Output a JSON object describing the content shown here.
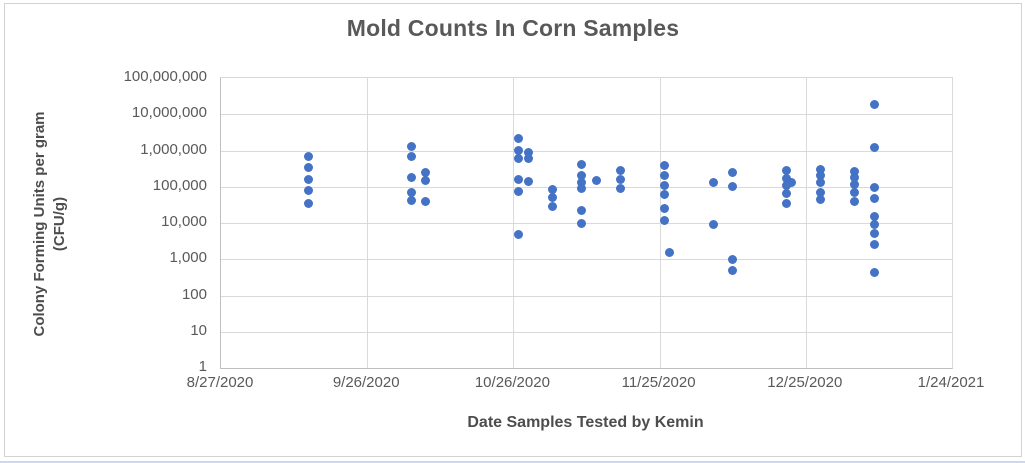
{
  "colors": {
    "marker": "#4472C4",
    "gridline": "#D9D9D9",
    "axis_line": "#BFBFBF",
    "text": "#595959",
    "bottom_strip": "#CDD9EA"
  },
  "chart_data": {
    "type": "scatter",
    "title": "Mold Counts In Corn Samples",
    "xlabel": "Date Samples Tested by Kemin",
    "ylabel_line1": "Colony Forming Units per gram",
    "ylabel_line2": "(CFU/g)",
    "y_scale": "log10",
    "ylim": [
      1,
      100000000
    ],
    "grid": "both",
    "legend": "none",
    "x_start": "8/27/2020",
    "x_end": "1/24/2021",
    "x_ticks": [
      "8/27/2020",
      "9/26/2020",
      "10/26/2020",
      "11/25/2020",
      "12/25/2020",
      "1/24/2021"
    ],
    "y_ticks": [
      {
        "label": "100,000,000",
        "value": 100000000
      },
      {
        "label": "10,000,000",
        "value": 10000000
      },
      {
        "label": "1,000,000",
        "value": 1000000
      },
      {
        "label": "100,000",
        "value": 100000
      },
      {
        "label": "10,000",
        "value": 10000
      },
      {
        "label": "1,000",
        "value": 1000
      },
      {
        "label": "100",
        "value": 100
      },
      {
        "label": "10",
        "value": 10
      },
      {
        "label": "1",
        "value": 1
      }
    ],
    "points": [
      {
        "date": "9/14/2020",
        "cfu": 700000
      },
      {
        "date": "9/14/2020",
        "cfu": 340000
      },
      {
        "date": "9/14/2020",
        "cfu": 160000
      },
      {
        "date": "9/14/2020",
        "cfu": 78000
      },
      {
        "date": "9/14/2020",
        "cfu": 34000
      },
      {
        "date": "10/5/2020",
        "cfu": 1300000
      },
      {
        "date": "10/5/2020",
        "cfu": 700000
      },
      {
        "date": "10/5/2020",
        "cfu": 180000
      },
      {
        "date": "10/5/2020",
        "cfu": 70000
      },
      {
        "date": "10/5/2020",
        "cfu": 42000
      },
      {
        "date": "10/8/2020",
        "cfu": 240000
      },
      {
        "date": "10/8/2020",
        "cfu": 145000
      },
      {
        "date": "10/8/2020",
        "cfu": 38000
      },
      {
        "date": "10/27/2020",
        "cfu": 2200000
      },
      {
        "date": "10/27/2020",
        "cfu": 1000000
      },
      {
        "date": "10/27/2020",
        "cfu": 620000
      },
      {
        "date": "10/29/2020",
        "cfu": 880000
      },
      {
        "date": "10/29/2020",
        "cfu": 600000
      },
      {
        "date": "10/27/2020",
        "cfu": 160000
      },
      {
        "date": "10/29/2020",
        "cfu": 140000
      },
      {
        "date": "10/27/2020",
        "cfu": 75000
      },
      {
        "date": "10/27/2020",
        "cfu": 4700
      },
      {
        "date": "11/3/2020",
        "cfu": 85000
      },
      {
        "date": "11/3/2020",
        "cfu": 50000
      },
      {
        "date": "11/3/2020",
        "cfu": 28000
      },
      {
        "date": "11/9/2020",
        "cfu": 400000
      },
      {
        "date": "11/9/2020",
        "cfu": 200000
      },
      {
        "date": "11/9/2020",
        "cfu": 130000
      },
      {
        "date": "11/9/2020",
        "cfu": 90000
      },
      {
        "date": "11/9/2020",
        "cfu": 22000
      },
      {
        "date": "11/9/2020",
        "cfu": 10000
      },
      {
        "date": "11/12/2020",
        "cfu": 150000
      },
      {
        "date": "11/17/2020",
        "cfu": 280000
      },
      {
        "date": "11/17/2020",
        "cfu": 160000
      },
      {
        "date": "11/17/2020",
        "cfu": 90000
      },
      {
        "date": "11/26/2020",
        "cfu": 390000
      },
      {
        "date": "11/26/2020",
        "cfu": 210000
      },
      {
        "date": "11/26/2020",
        "cfu": 110000
      },
      {
        "date": "11/26/2020",
        "cfu": 60000
      },
      {
        "date": "11/26/2020",
        "cfu": 25000
      },
      {
        "date": "11/26/2020",
        "cfu": 11500
      },
      {
        "date": "11/27/2020",
        "cfu": 1500
      },
      {
        "date": "12/6/2020",
        "cfu": 130000
      },
      {
        "date": "12/6/2020",
        "cfu": 9000
      },
      {
        "date": "12/10/2020",
        "cfu": 255000
      },
      {
        "date": "12/10/2020",
        "cfu": 100000
      },
      {
        "date": "12/10/2020",
        "cfu": 1000
      },
      {
        "date": "12/10/2020",
        "cfu": 480
      },
      {
        "date": "12/21/2020",
        "cfu": 280000
      },
      {
        "date": "12/21/2020",
        "cfu": 170000
      },
      {
        "date": "12/22/2020",
        "cfu": 130000
      },
      {
        "date": "12/21/2020",
        "cfu": 110000
      },
      {
        "date": "12/21/2020",
        "cfu": 66000
      },
      {
        "date": "12/21/2020",
        "cfu": 35000
      },
      {
        "date": "12/28/2020",
        "cfu": 300000
      },
      {
        "date": "12/28/2020",
        "cfu": 200000
      },
      {
        "date": "12/28/2020",
        "cfu": 130000
      },
      {
        "date": "12/28/2020",
        "cfu": 70000
      },
      {
        "date": "12/28/2020",
        "cfu": 45000
      },
      {
        "date": "1/4/2021",
        "cfu": 270000
      },
      {
        "date": "1/4/2021",
        "cfu": 180000
      },
      {
        "date": "1/4/2021",
        "cfu": 115000
      },
      {
        "date": "1/4/2021",
        "cfu": 70000
      },
      {
        "date": "1/4/2021",
        "cfu": 40000
      },
      {
        "date": "1/8/2021",
        "cfu": 18000000
      },
      {
        "date": "1/8/2021",
        "cfu": 1200000
      },
      {
        "date": "1/8/2021",
        "cfu": 93000
      },
      {
        "date": "1/8/2021",
        "cfu": 48000
      },
      {
        "date": "1/8/2021",
        "cfu": 15000
      },
      {
        "date": "1/8/2021",
        "cfu": 9000
      },
      {
        "date": "1/8/2021",
        "cfu": 5200
      },
      {
        "date": "1/8/2021",
        "cfu": 2500
      },
      {
        "date": "1/8/2021",
        "cfu": 430
      }
    ]
  }
}
